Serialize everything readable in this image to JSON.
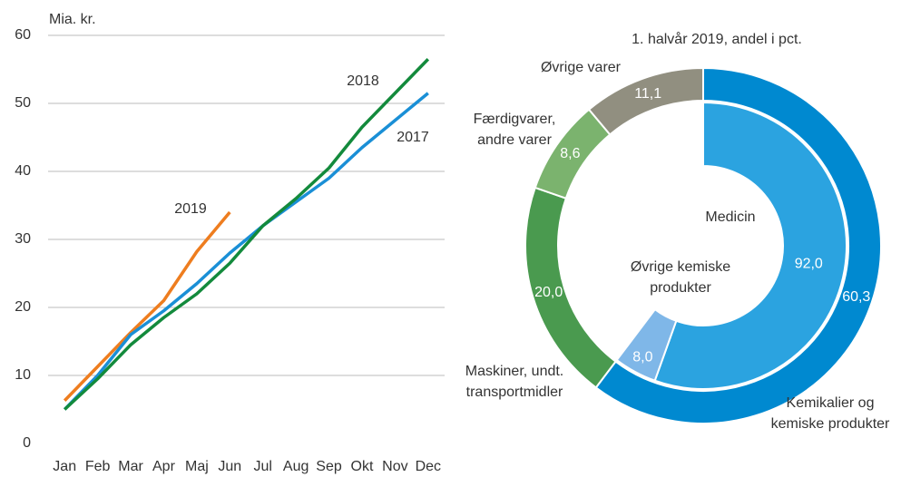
{
  "chart_data": [
    {
      "type": "line",
      "y_label": "Mia. kr.",
      "categories": [
        "Jan",
        "Feb",
        "Mar",
        "Apr",
        "Maj",
        "Jun",
        "Jul",
        "Aug",
        "Sep",
        "Okt",
        "Nov",
        "Dec"
      ],
      "ylim": [
        0,
        60
      ],
      "yticks": [
        0,
        10,
        20,
        30,
        40,
        50,
        60
      ],
      "grid": true,
      "series": [
        {
          "name": "2019",
          "color": "#ee7d1f",
          "values": [
            6.3,
            11.3,
            16.3,
            21,
            28.2,
            34,
            null,
            null,
            null,
            null,
            null,
            null
          ]
        },
        {
          "name": "2017",
          "color": "#1a8fd6",
          "values": [
            5,
            10,
            16,
            19.5,
            23.5,
            28,
            32,
            35.5,
            39,
            43.5,
            47.5,
            51.5
          ]
        },
        {
          "name": "2018",
          "color": "#138a3c",
          "values": [
            5,
            9.5,
            14.5,
            18.5,
            22,
            26.5,
            32,
            36,
            40.5,
            46.5,
            51.5,
            56.5
          ]
        }
      ]
    },
    {
      "type": "donut",
      "title": "1. halvår 2019, andel i pct.",
      "categories": [
        [
          "Kemikalier og",
          "kemiske produkter"
        ],
        [
          "Maskiner, undt.",
          "transportmidler"
        ],
        [
          "Færdigvarer,",
          "andre varer"
        ],
        [
          "Øvrige varer"
        ]
      ],
      "values": [
        60.3,
        20.0,
        8.6,
        11.1
      ],
      "value_labels": [
        "60,3",
        "20,0",
        "8,6",
        "11,1"
      ],
      "colors": [
        "#0089d0",
        "#4a9a4f",
        "#7bb36e",
        "#918f80"
      ],
      "inner": {
        "categories": [
          [
            "Medicin"
          ],
          [
            "Øvrige kemiske",
            "produkter"
          ]
        ],
        "values": [
          92.0,
          8.0
        ],
        "value_labels": [
          "92,0",
          "8,0"
        ],
        "colors": [
          "#2ba3e0",
          "#7fb7e8"
        ]
      }
    }
  ]
}
